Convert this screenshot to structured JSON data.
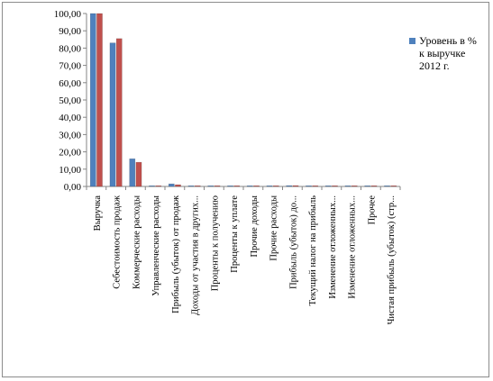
{
  "chart_data": {
    "type": "bar",
    "title": "",
    "xlabel": "",
    "ylabel": "",
    "ylim": [
      0,
      100
    ],
    "yticks": [
      "0,00",
      "10,00",
      "20,00",
      "30,00",
      "40,00",
      "50,00",
      "60,00",
      "70,00",
      "80,00",
      "90,00",
      "100,00"
    ],
    "grid": false,
    "legend_position": "right",
    "categories": [
      "Выручка",
      "Себестоимость продаж",
      "Коммерческие расходы",
      "Управленческие расходы",
      "Прибыль (убыток) от продаж",
      "Доходы от участия в других...",
      "Проценты к получению",
      "Проценты к уплате",
      "Прочие доходы",
      "Прочие расходы",
      "Прибыль (убыток) до...",
      "Текущий налог на прибыль",
      "Изменение отложенных...",
      "Изменение отложенных...",
      "Прочее",
      "Чистая прибыль (убыток) (стр..."
    ],
    "series": [
      {
        "name": "Уровень в % к выручке 2012 г.",
        "color": "#4f81bd",
        "values": [
          100,
          83,
          16,
          0.3,
          1.5,
          0,
          0,
          0.2,
          0,
          0.2,
          0.5,
          0.2,
          0,
          0,
          0.1,
          0.3
        ]
      },
      {
        "name": "",
        "color": "#c0504d",
        "values": [
          100,
          85.5,
          14,
          0.3,
          1,
          0,
          0,
          0.2,
          0,
          0.2,
          0.5,
          0.2,
          0,
          0,
          0.1,
          0.3
        ]
      }
    ]
  },
  "legend": {
    "label": "Уровень в % к выручке 2012 г."
  }
}
